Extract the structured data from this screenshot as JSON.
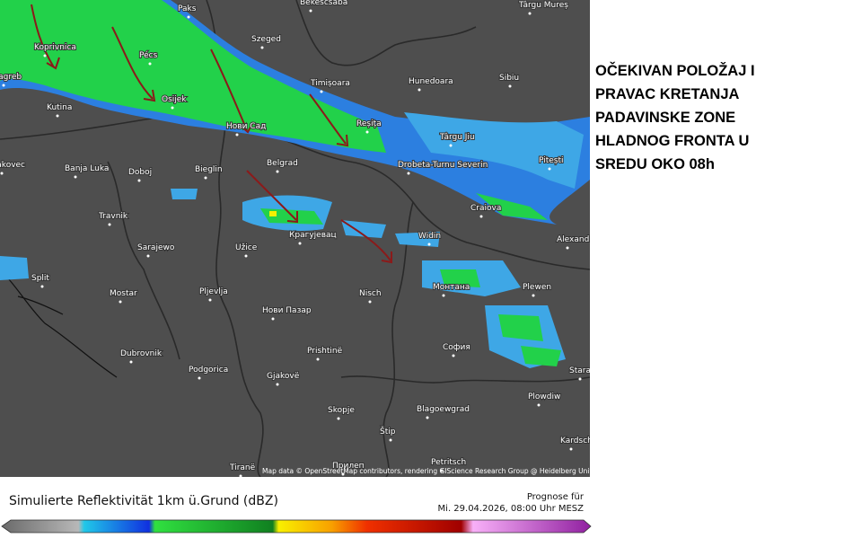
{
  "map": {
    "cities": [
      "Paks",
      "Bekescsaba",
      "Târgu Mureș",
      "Koprivnica",
      "Pécs",
      "Szeged",
      "Zagreb",
      "Osijek",
      "Timișoara",
      "Hunedoara",
      "Sibiu",
      "Kutina",
      "Нови Сад",
      "Reșița",
      "Târgu Jiu",
      "Pitești",
      "Čakovec",
      "Banja Luka",
      "Doboj",
      "Bieglin",
      "Belgrad",
      "Drobeta-Turnu Severin",
      "Travnik",
      "Craiova",
      "Sarajewo",
      "Užice",
      "Крагујевац",
      "Widin",
      "Alexandria",
      "Split",
      "Mostar",
      "Pljevlja",
      "Nisch",
      "Монтана",
      "Plewen",
      "Нови Пазар",
      "Prishtinë",
      "София",
      "Dubrovnik",
      "Podgorica",
      "Gjakovë",
      "Skopje",
      "Blagoewgrad",
      "Plowdiw",
      "Štip",
      "Kardschali",
      "Tiranë",
      "Прилеп",
      "Petritsch",
      "Stara Sagora"
    ],
    "attribution": "Map data © OpenStreetMap contributors, rendering GIScience Research Group @ Heidelberg University"
  },
  "annotation": {
    "lines": [
      "OČEKIVAN POLOŽAJ I",
      "PRAVAC KRETANJA",
      "PADAVINSKE ZONE",
      "HLADNOG FRONTA U",
      "SREDU OKO 08h"
    ]
  },
  "legend": {
    "title": "Simulierte Reflektivität 1km ü.Grund (dBZ)",
    "prognose": "Prognose für",
    "datetime": "Mi. 29.04.2026, 08:00 Uhr MESZ"
  }
}
